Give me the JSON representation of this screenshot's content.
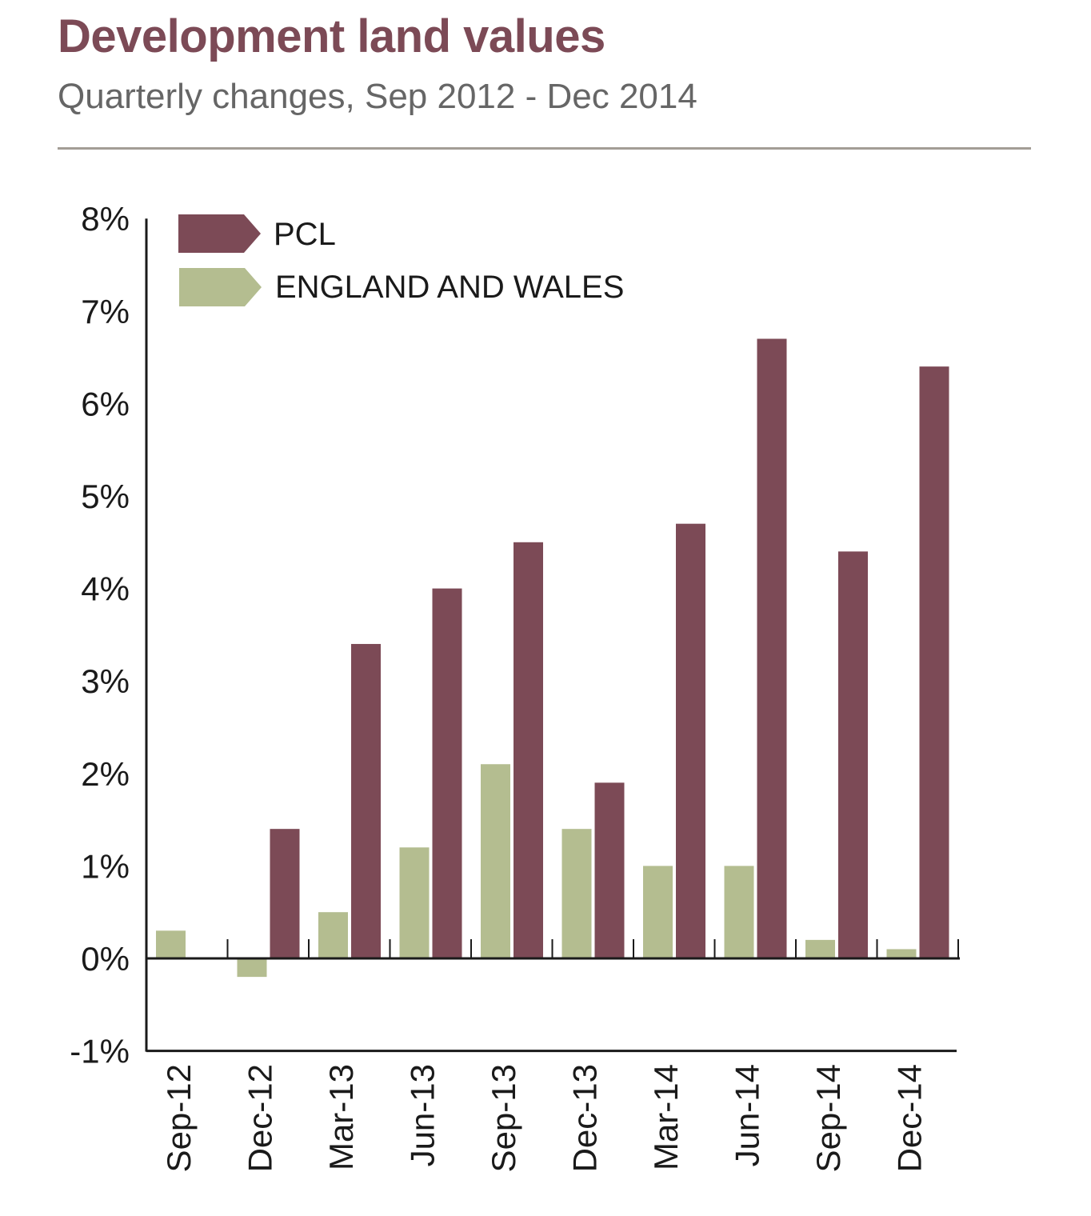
{
  "header": {
    "title": "Development land values",
    "subtitle": "Quarterly changes, Sep 2012 - Dec 2014"
  },
  "colors": {
    "pcl": "#7c4a56",
    "england_wales": "#b4bd90",
    "title": "#7c4a56",
    "subtitle": "#666666",
    "axis": "#1a1a1a",
    "rule": "#a39d96"
  },
  "chart_data": {
    "type": "bar",
    "title": "Development land values",
    "subtitle": "Quarterly changes, Sep 2012 - Dec 2014",
    "xlabel": "",
    "ylabel": "",
    "ylim": [
      -1,
      8
    ],
    "yticks": [
      -1,
      0,
      1,
      2,
      3,
      4,
      5,
      6,
      7,
      8
    ],
    "ytick_labels": [
      "-1%",
      "0%",
      "1%",
      "2%",
      "3%",
      "4%",
      "5%",
      "6%",
      "7%",
      "8%"
    ],
    "categories": [
      "Sep-12",
      "Dec-12",
      "Mar-13",
      "Jun-13",
      "Sep-13",
      "Dec-13",
      "Mar-14",
      "Jun-14",
      "Sep-14",
      "Dec-14"
    ],
    "series": [
      {
        "name": "ENGLAND AND WALES",
        "color": "#b4bd90",
        "values": [
          0.3,
          -0.2,
          0.5,
          1.2,
          2.1,
          1.4,
          1.0,
          1.0,
          0.2,
          0.1
        ]
      },
      {
        "name": "PCL",
        "color": "#7c4a56",
        "values": [
          null,
          1.4,
          3.4,
          4.0,
          4.5,
          1.9,
          4.7,
          6.7,
          4.4,
          6.4
        ]
      }
    ],
    "legend": {
      "placement": "top-left",
      "entries": [
        "PCL",
        "ENGLAND AND WALES"
      ]
    },
    "grid": false
  }
}
